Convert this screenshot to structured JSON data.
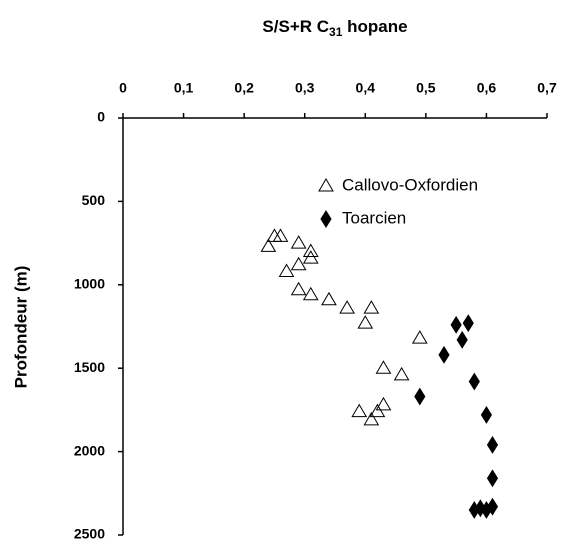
{
  "chart_data": {
    "type": "scatter",
    "title": [
      "S/S+R C",
      "31",
      " hopane"
    ],
    "y_label": "Profondeur (m)",
    "xlim": [
      0,
      0.7
    ],
    "ylim": [
      0,
      2500
    ],
    "y_inverted": true,
    "x_axis_position": "top",
    "xticks": [
      0,
      {
        "value": 0.1,
        "label": "0,1"
      },
      {
        "value": 0.2,
        "label": "0,2"
      },
      {
        "value": 0.3,
        "label": "0,3"
      },
      {
        "value": 0.4,
        "label": "0,4"
      },
      {
        "value": 0.5,
        "label": "0,5"
      },
      {
        "value": 0.6,
        "label": "0,6"
      },
      {
        "value": 0.7,
        "label": "0,7"
      }
    ],
    "yticks": [
      0,
      500,
      1000,
      1500,
      2000,
      2500
    ],
    "legend": "top-right",
    "series": [
      {
        "name": "Callovo-Oxfordien",
        "color": "#000000",
        "marker": "triangle-open",
        "x": [
          0.24,
          0.25,
          0.26,
          0.29,
          0.31,
          0.31,
          0.27,
          0.29,
          0.29,
          0.31,
          0.34,
          0.37,
          0.41,
          0.4,
          0.49,
          0.43,
          0.46,
          0.43,
          0.39,
          0.41,
          0.42
        ],
        "values": [
          770,
          710,
          710,
          750,
          800,
          840,
          920,
          880,
          1030,
          1060,
          1090,
          1140,
          1140,
          1230,
          1320,
          1500,
          1540,
          1720,
          1760,
          1810,
          1760
        ]
      },
      {
        "name": "Toarcien",
        "color": "#000000",
        "marker": "diamond",
        "x": [
          0.55,
          0.57,
          0.56,
          0.53,
          0.58,
          0.49,
          0.6,
          0.61,
          0.61,
          0.58,
          0.59,
          0.61,
          0.6
        ],
        "values": [
          1240,
          1230,
          1330,
          1420,
          1580,
          1670,
          1780,
          1960,
          2160,
          2350,
          2340,
          2330,
          2350
        ]
      }
    ]
  }
}
